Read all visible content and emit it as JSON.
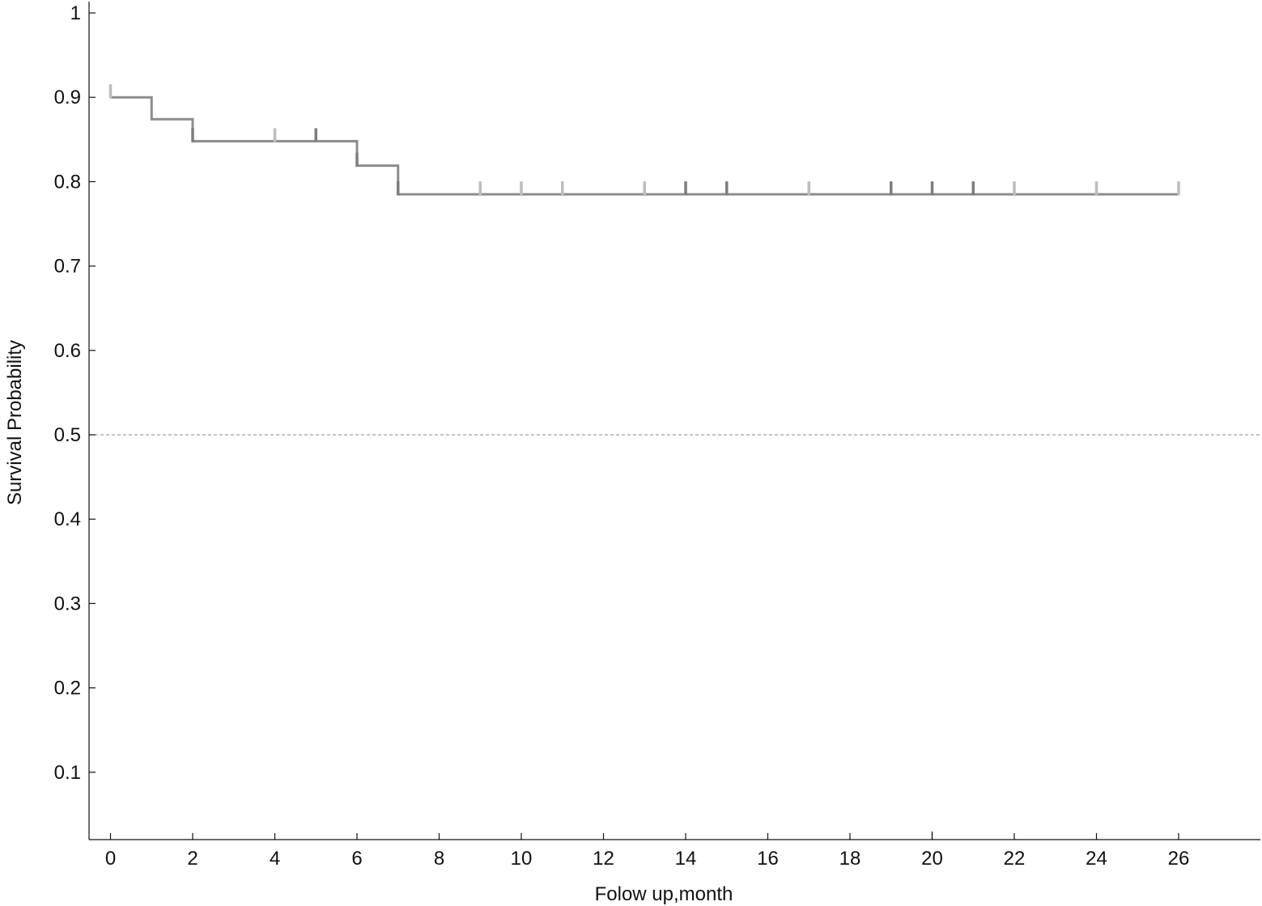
{
  "chart_data": {
    "type": "line",
    "subtype": "kaplan-meier-step",
    "title": "",
    "xlabel": "Folow up,month",
    "ylabel": "Survival Probability",
    "xlim": [
      -0.5,
      28
    ],
    "ylim": [
      0.02,
      1
    ],
    "x_ticks": [
      0,
      2,
      4,
      6,
      8,
      10,
      12,
      14,
      16,
      18,
      20,
      22,
      24,
      26
    ],
    "x_tick_labels": [
      "0",
      "2",
      "4",
      "6",
      "8",
      "10",
      "12",
      "14",
      "16",
      "18",
      "20",
      "22",
      "24",
      "26"
    ],
    "y_ticks": [
      0.1,
      0.2,
      0.3,
      0.4,
      0.5,
      0.6,
      0.7,
      0.8,
      0.9,
      1
    ],
    "y_tick_labels": [
      "0.1",
      "0.2",
      "0.3",
      "0.4",
      "0.5",
      "0.6",
      "0.7",
      "0.8",
      "0.9",
      "1"
    ],
    "reference_line": {
      "y": 0.5,
      "style": "dashed",
      "color": "#a0a0a0"
    },
    "grid": false,
    "series": [
      {
        "color": "#8c8c8c",
        "steps": [
          {
            "x": 0,
            "y": 0.9
          },
          {
            "x": 1,
            "y": 0.874
          },
          {
            "x": 2,
            "y": 0.848
          },
          {
            "x": 6,
            "y": 0.819
          },
          {
            "x": 7,
            "y": 0.785
          },
          {
            "x": 26,
            "y": 0.785
          }
        ],
        "censored": [
          {
            "x": 0,
            "y": 0.9,
            "shade": "light"
          },
          {
            "x": 2,
            "y": 0.848,
            "shade": "dark"
          },
          {
            "x": 4,
            "y": 0.848,
            "shade": "light"
          },
          {
            "x": 5,
            "y": 0.848,
            "shade": "dark"
          },
          {
            "x": 6,
            "y": 0.819,
            "shade": "dark"
          },
          {
            "x": 7,
            "y": 0.785,
            "shade": "dark"
          },
          {
            "x": 9,
            "y": 0.785,
            "shade": "light"
          },
          {
            "x": 10,
            "y": 0.785,
            "shade": "light"
          },
          {
            "x": 11,
            "y": 0.785,
            "shade": "light"
          },
          {
            "x": 13,
            "y": 0.785,
            "shade": "light"
          },
          {
            "x": 14,
            "y": 0.785,
            "shade": "dark"
          },
          {
            "x": 15,
            "y": 0.785,
            "shade": "dark"
          },
          {
            "x": 17,
            "y": 0.785,
            "shade": "light"
          },
          {
            "x": 19,
            "y": 0.785,
            "shade": "dark"
          },
          {
            "x": 20,
            "y": 0.785,
            "shade": "dark"
          },
          {
            "x": 21,
            "y": 0.785,
            "shade": "dark"
          },
          {
            "x": 22,
            "y": 0.785,
            "shade": "light"
          },
          {
            "x": 24,
            "y": 0.785,
            "shade": "light"
          },
          {
            "x": 26,
            "y": 0.785,
            "shade": "light"
          }
        ]
      }
    ]
  },
  "colors": {
    "axis": "#111111",
    "line": "#8c8c8c",
    "censor_light": "#bdbdbd",
    "censor_dark": "#7d7d7d",
    "reference": "#a0a0a0"
  }
}
